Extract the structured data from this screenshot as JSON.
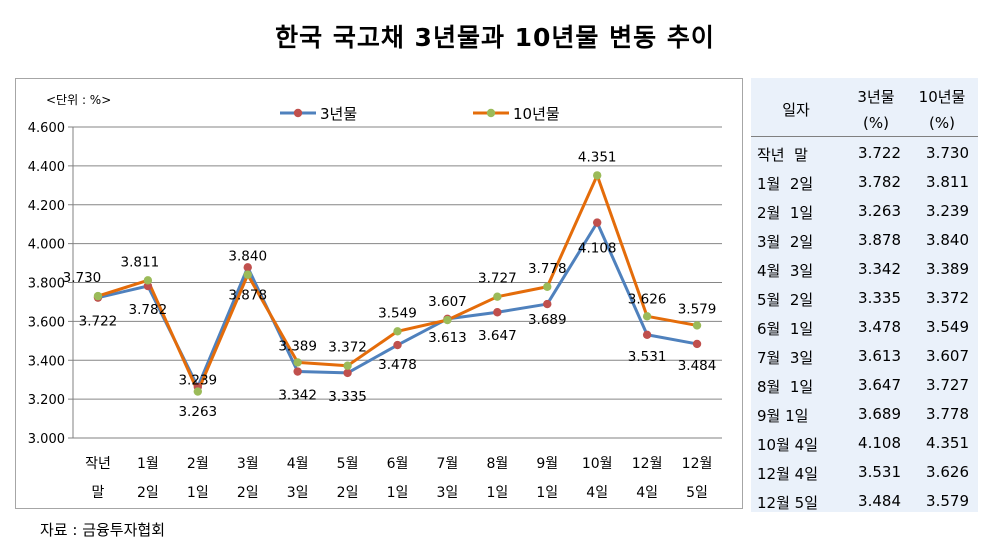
{
  "title": "한국 국고채 3년물과 10년물 변동 추이",
  "source": "자료 : 금융투자협회",
  "chart_data": {
    "type": "line",
    "unit_label": "<단위 : %>",
    "categories": [
      [
        "작년",
        "말"
      ],
      [
        "1월",
        "2일"
      ],
      [
        "2월",
        "1일"
      ],
      [
        "3월",
        "2일"
      ],
      [
        "4월",
        "3일"
      ],
      [
        "5월",
        "2일"
      ],
      [
        "6월",
        "1일"
      ],
      [
        "7월",
        "3일"
      ],
      [
        "8월",
        "1일"
      ],
      [
        "9월",
        "1일"
      ],
      [
        "10월",
        "4일"
      ],
      [
        "12월",
        "4일"
      ],
      [
        "12월",
        "5일"
      ]
    ],
    "ylim": [
      3.0,
      4.6
    ],
    "yticks": [
      "3.000",
      "3.200",
      "3.400",
      "3.600",
      "3.800",
      "4.000",
      "4.200",
      "4.400",
      "4.600"
    ],
    "grid": true,
    "legend_position": "top-center",
    "series": [
      {
        "name": "3년물",
        "line_color": "#4f81bd",
        "marker_color": "#c0504d",
        "values": [
          3.722,
          3.782,
          3.263,
          3.878,
          3.342,
          3.335,
          3.478,
          3.613,
          3.647,
          3.689,
          4.108,
          3.531,
          3.484
        ],
        "labels": [
          "3.722",
          "3.782",
          "3.263",
          "3.878",
          "3.342",
          "3.335",
          "3.478",
          "3.613",
          "3.647",
          "3.689",
          "4.108",
          "3.531",
          "3.484"
        ]
      },
      {
        "name": "10년물",
        "line_color": "#e46c0a",
        "marker_color": "#9bbb59",
        "values": [
          3.73,
          3.811,
          3.239,
          3.84,
          3.389,
          3.372,
          3.549,
          3.607,
          3.727,
          3.778,
          4.351,
          3.626,
          3.579
        ],
        "labels": [
          "3.730",
          "3.811",
          "3.239",
          "3.840",
          "3.389",
          "3.372",
          "3.549",
          "3.607",
          "3.727",
          "3.778",
          "4.351",
          "3.626",
          "3.579"
        ]
      }
    ]
  },
  "table": {
    "headers": {
      "date": "일자",
      "y3_line1": "3년물",
      "y3_line2": "(%)",
      "y10_line1": "10년물",
      "y10_line2": "(%)"
    },
    "rows": [
      {
        "date": "작년  말",
        "y3": "3.722",
        "y10": "3.730"
      },
      {
        "date": "1월  2일",
        "y3": "3.782",
        "y10": "3.811"
      },
      {
        "date": "2월  1일",
        "y3": "3.263",
        "y10": "3.239"
      },
      {
        "date": "3월  2일",
        "y3": "3.878",
        "y10": "3.840"
      },
      {
        "date": "4월  3일",
        "y3": "3.342",
        "y10": "3.389"
      },
      {
        "date": "5월  2일",
        "y3": "3.335",
        "y10": "3.372"
      },
      {
        "date": "6월  1일",
        "y3": "3.478",
        "y10": "3.549"
      },
      {
        "date": "7월  3일",
        "y3": "3.613",
        "y10": "3.607"
      },
      {
        "date": "8월  1일",
        "y3": "3.647",
        "y10": "3.727"
      },
      {
        "date": "9월 1일",
        "y3": "3.689",
        "y10": "3.778"
      },
      {
        "date": "10월 4일",
        "y3": "4.108",
        "y10": "4.351"
      },
      {
        "date": "12월 4일",
        "y3": "3.531",
        "y10": "3.626"
      },
      {
        "date": "12월 5일",
        "y3": "3.484",
        "y10": "3.579"
      }
    ]
  }
}
